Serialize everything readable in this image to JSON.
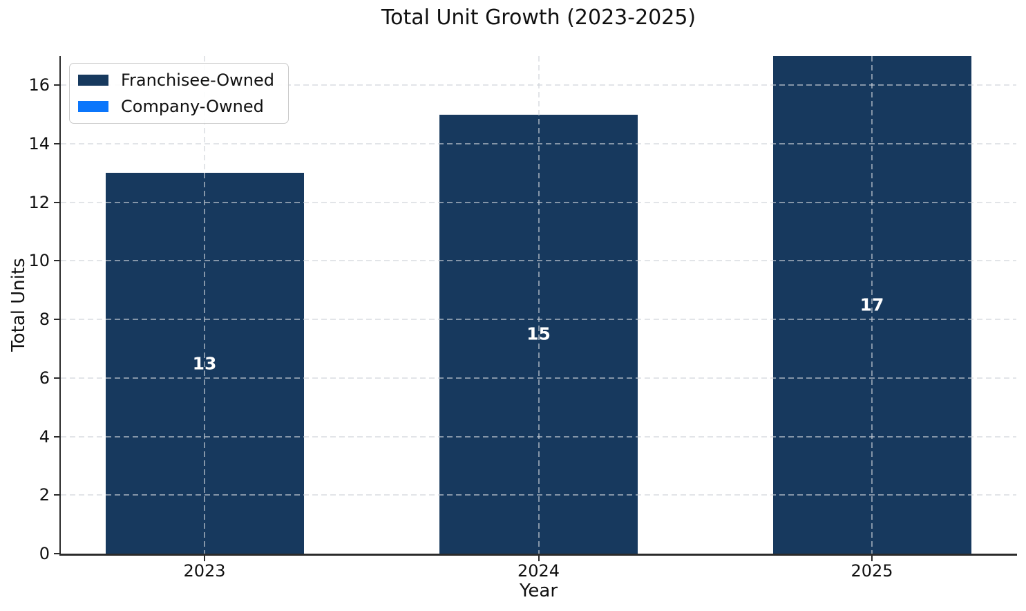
{
  "chart_data": {
    "type": "bar",
    "stacked": true,
    "title": "Total Unit Growth (2023-2025)",
    "xlabel": "Year",
    "ylabel": "Total Units",
    "categories": [
      "2023",
      "2024",
      "2025"
    ],
    "series": [
      {
        "name": "Franchisee-Owned",
        "color": "#17395E",
        "values": [
          13,
          15,
          17
        ]
      },
      {
        "name": "Company-Owned",
        "color": "#0B76FB",
        "values": [
          0,
          0,
          0
        ]
      }
    ],
    "bar_value_labels": [
      "13",
      "15",
      "17"
    ],
    "ylim": [
      0,
      17
    ],
    "yticks": [
      0,
      2,
      4,
      6,
      8,
      10,
      12,
      14,
      16
    ],
    "grid": {
      "style": "dashed",
      "horizontal": true,
      "vertical": true
    },
    "legend": {
      "position": "upper-left"
    }
  }
}
